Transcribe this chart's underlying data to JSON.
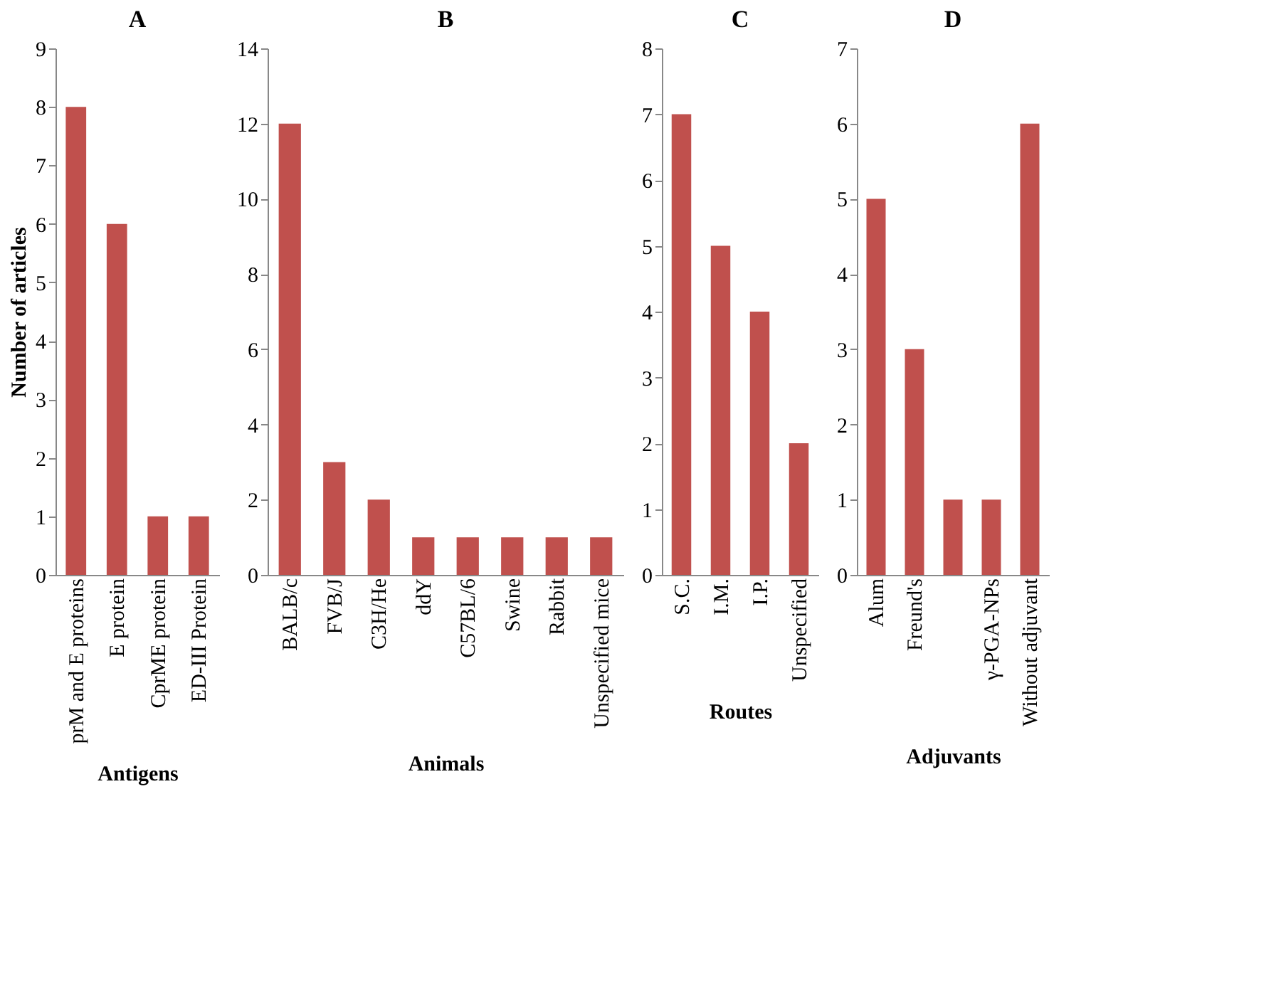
{
  "chart_data": [
    {
      "type": "bar",
      "title": "A",
      "xlabel": "Antigens",
      "ylabel": "Number of articles",
      "categories": [
        "prM and E proteins",
        "E protein",
        "CprME protein",
        "ED-III Protein"
      ],
      "values": [
        8,
        6,
        1,
        1
      ],
      "color": "#c0504d",
      "ylim": [
        0,
        9
      ],
      "yticks": [
        0,
        1,
        2,
        3,
        4,
        5,
        6,
        7,
        8,
        9
      ]
    },
    {
      "type": "bar",
      "title": "B",
      "xlabel": "Animals",
      "categories": [
        "BALB/c",
        "FVB/J",
        "C3H/He",
        "ddY",
        "C57BL/6",
        "Swine",
        "Rabbit",
        "Unspecified  mice"
      ],
      "values": [
        12,
        3,
        2,
        1,
        1,
        1,
        1,
        1
      ],
      "color": "#c0504d",
      "ylim": [
        0,
        14
      ],
      "yticks": [
        0,
        2,
        4,
        6,
        8,
        10,
        12,
        14
      ]
    },
    {
      "type": "bar",
      "title": "C",
      "xlabel": "Routes",
      "categories": [
        "S.C.",
        "I.M.",
        "I.P.",
        "Unspecified"
      ],
      "values": [
        7,
        5,
        4,
        2
      ],
      "color": "#c0504d",
      "ylim": [
        0,
        8
      ],
      "yticks": [
        0,
        1,
        2,
        3,
        4,
        5,
        6,
        7,
        8
      ]
    },
    {
      "type": "bar",
      "title": "D",
      "xlabel": "Adjuvants",
      "categories": [
        "Alum",
        "Freund's",
        null,
        "γ-PGA-NPs",
        "Without adjuvant"
      ],
      "values": [
        5,
        3,
        1,
        1,
        6
      ],
      "color": "#c0504d",
      "ylim": [
        0,
        7
      ],
      "yticks": [
        0,
        1,
        2,
        3,
        4,
        5,
        6,
        7
      ]
    }
  ]
}
